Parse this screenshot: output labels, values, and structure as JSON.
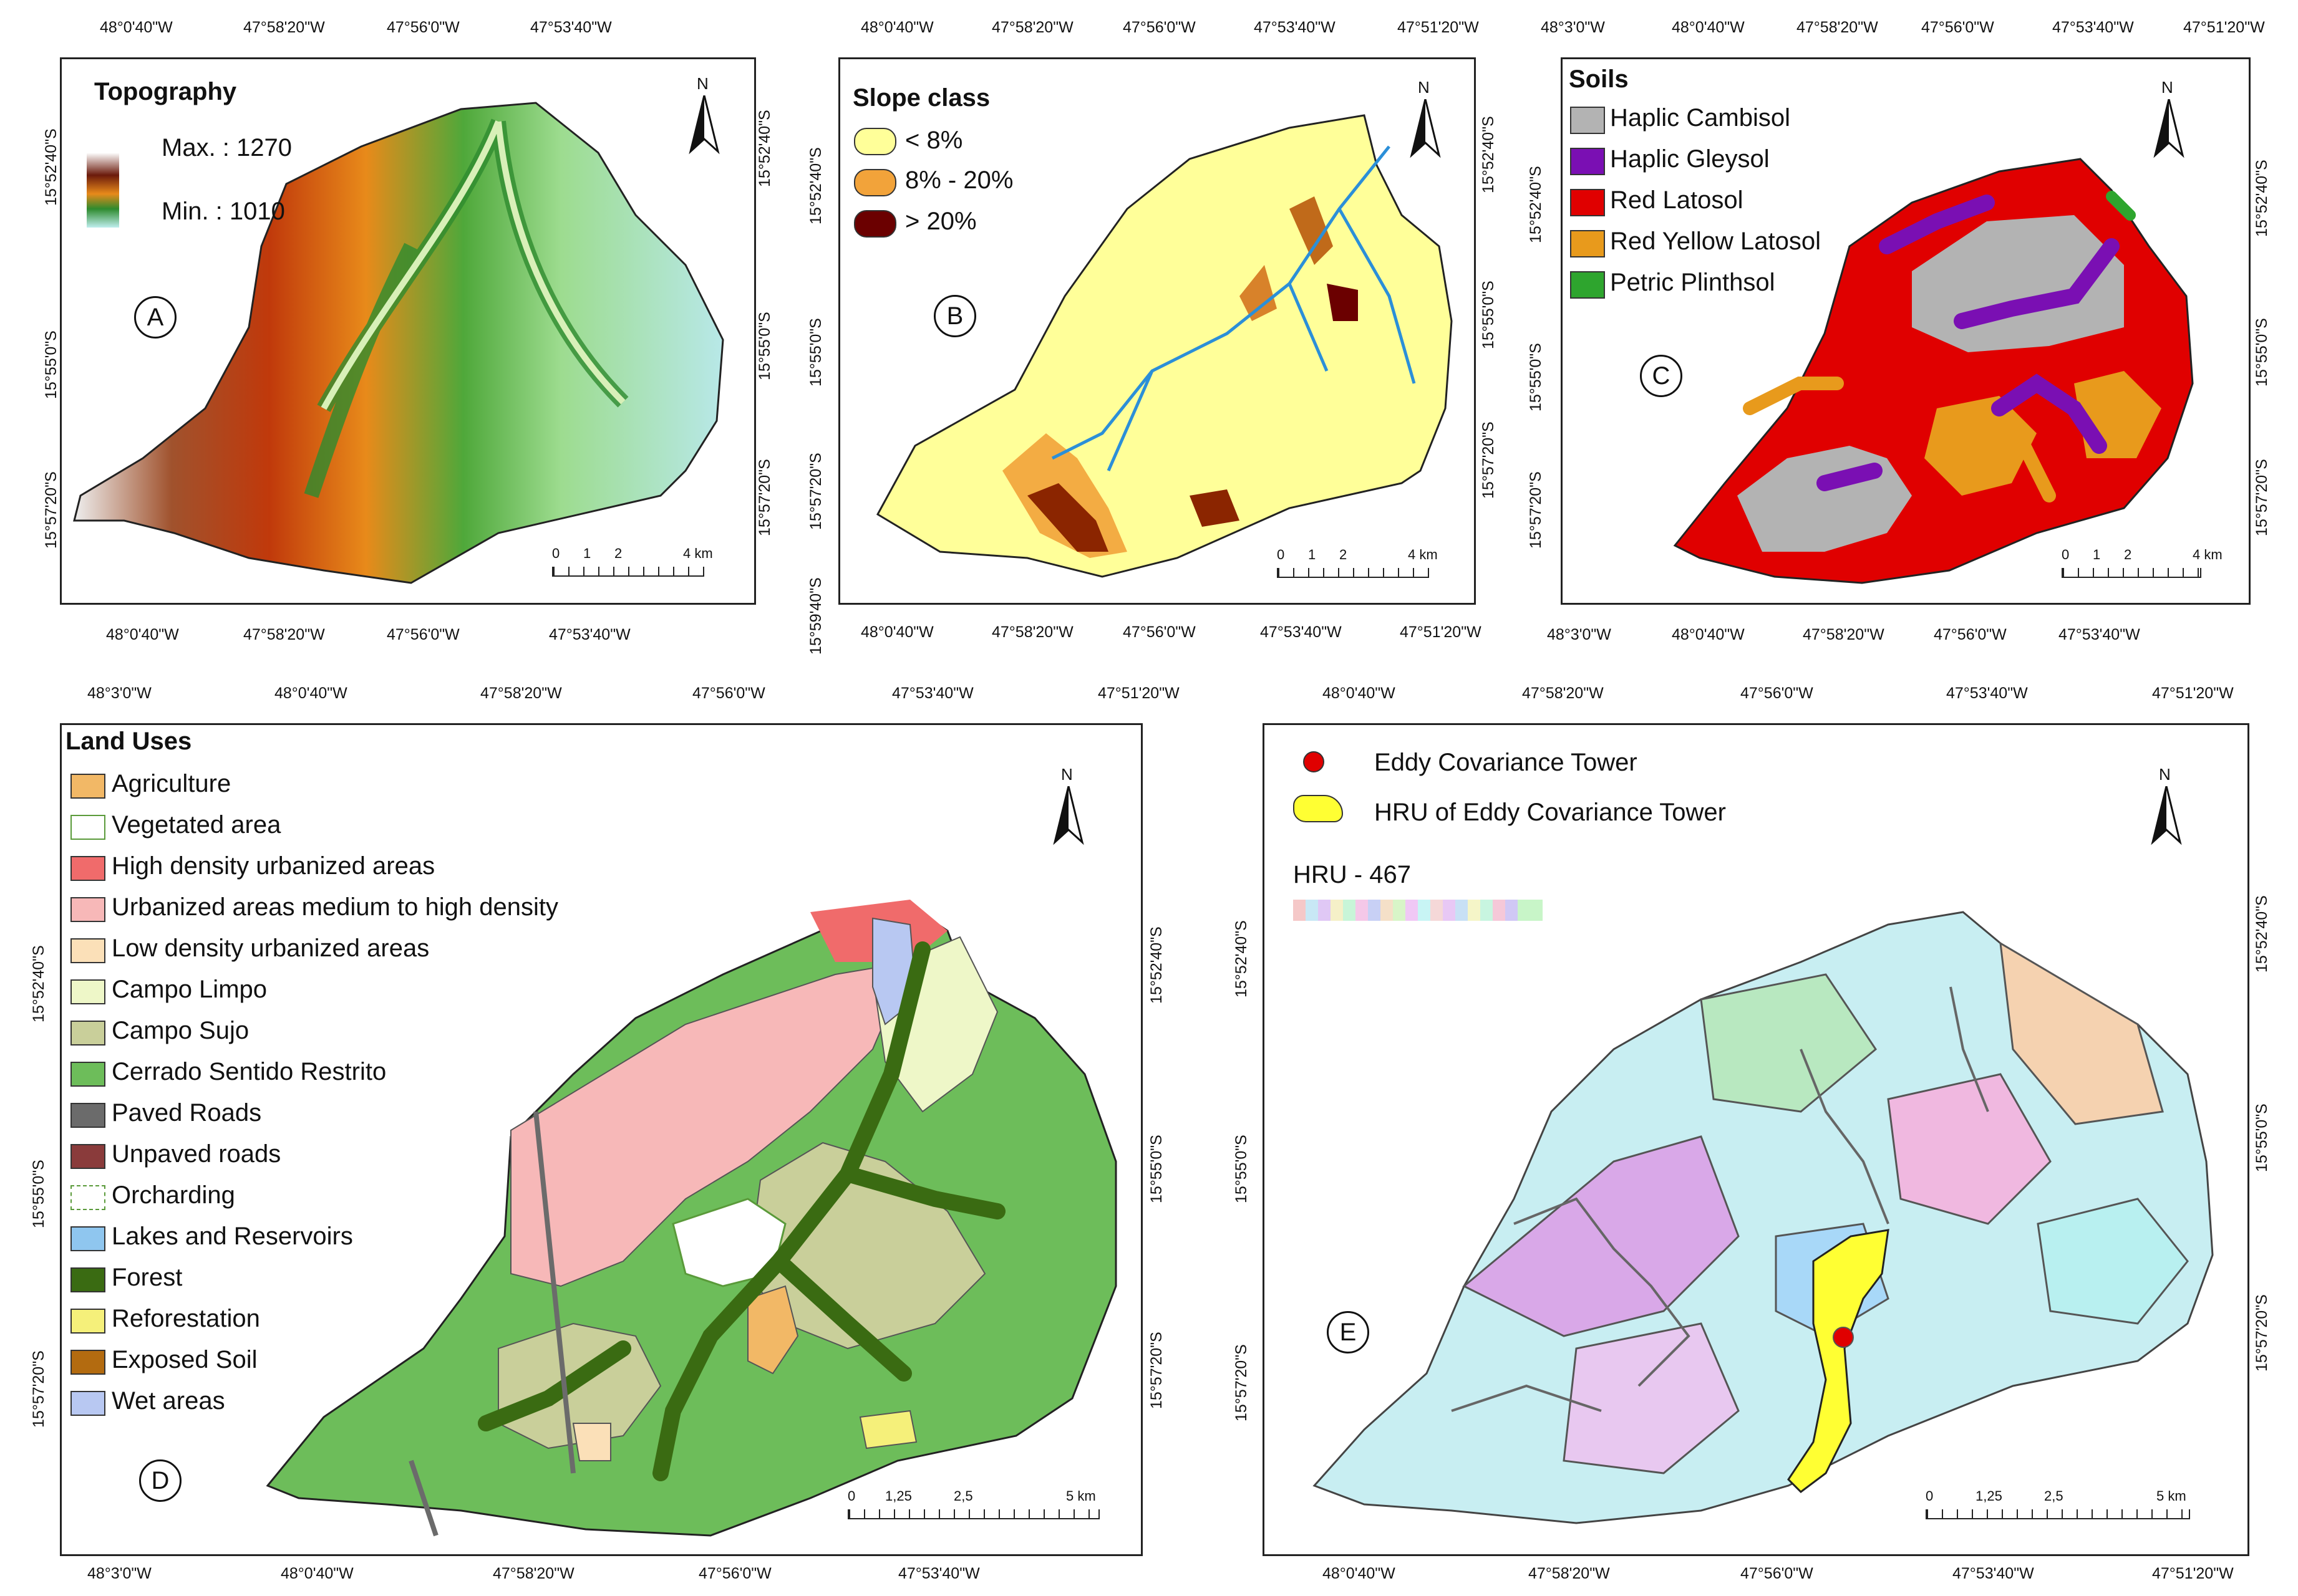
{
  "panels": {
    "A": {
      "title": "Topography",
      "max_label": "Max. : 1270",
      "min_label": "Min. : 1010",
      "letter": "A",
      "top_ticks": [
        "48°0'40\"W",
        "47°58'20\"W",
        "47°56'0\"W",
        "47°53'40\"W"
      ],
      "bottom_ticks": [
        "48°0'40\"W",
        "47°58'20\"W",
        "47°56'0\"W",
        "47°53'40\"W"
      ],
      "left_ticks": [
        "15°52'40\"S",
        "15°55'0\"S",
        "15°57'20\"S"
      ],
      "right_ticks": [
        "15°52'40\"S",
        "15°55'0\"S",
        "15°57'20\"S"
      ],
      "scale_labels": [
        "0",
        "1",
        "2",
        "4 km"
      ],
      "north": "N"
    },
    "B": {
      "title": "Slope class",
      "legend": [
        {
          "label": "< 8%",
          "color": "#ffff99"
        },
        {
          "label": "8% - 20%",
          "color": "#f2a33a"
        },
        {
          "label": "> 20%",
          "color": "#6b0000"
        }
      ],
      "letter": "B",
      "top_ticks": [
        "48°0'40\"W",
        "47°58'20\"W",
        "47°56'0\"W",
        "47°53'40\"W",
        "47°51'20\"W"
      ],
      "bottom_ticks": [
        "48°0'40\"W",
        "47°58'20\"W",
        "47°56'0\"W",
        "47°53'40\"W",
        "47°51'20\"W"
      ],
      "left_ticks": [
        "15°52'40\"S",
        "15°55'0\"S",
        "15°57'20\"S",
        "15°59'40\"S"
      ],
      "right_ticks": [
        "15°52'40\"S",
        "15°55'0\"S",
        "15°57'20\"S"
      ],
      "scale_labels": [
        "0",
        "1",
        "2",
        "4 km"
      ],
      "north": "N"
    },
    "C": {
      "title": "Soils",
      "legend": [
        {
          "label": "Haplic Cambisol",
          "color": "#b3b3b3"
        },
        {
          "label": "Haplic Gleysol",
          "color": "#7a0fb3"
        },
        {
          "label": "Red Latosol",
          "color": "#e00000"
        },
        {
          "label": "Red Yellow Latosol",
          "color": "#e89a1c"
        },
        {
          "label": "Petric Plinthsol",
          "color": "#2ea52e"
        }
      ],
      "letter": "C",
      "top_ticks": [
        "48°3'0\"W",
        "48°0'40\"W",
        "47°58'20\"W",
        "47°56'0\"W",
        "47°53'40\"W",
        "47°51'20\"W"
      ],
      "bottom_ticks": [
        "48°3'0\"W",
        "48°0'40\"W",
        "47°58'20\"W",
        "47°56'0\"W",
        "47°53'40\"W"
      ],
      "left_ticks": [
        "15°52'40\"S",
        "15°55'0\"S",
        "15°57'20\"S"
      ],
      "right_ticks": [
        "15°52'40\"S",
        "15°55'0\"S",
        "15°57'20\"S"
      ],
      "scale_labels": [
        "0",
        "1",
        "2",
        "4 km"
      ],
      "north": "N"
    },
    "D": {
      "title": "Land Uses",
      "legend": [
        {
          "label": "Agriculture",
          "color": "#f2b866"
        },
        {
          "label": "Vegetated area",
          "color": "#ffffff"
        },
        {
          "label": "High density urbanized areas",
          "color": "#f06b6b"
        },
        {
          "label": "Urbanized areas medium to high density",
          "color": "#f7b8b8"
        },
        {
          "label": "Low density urbanized areas",
          "color": "#fbe0b8"
        },
        {
          "label": "Campo Limpo",
          "color": "#eef7c8"
        },
        {
          "label": "Campo Sujo",
          "color": "#c9cf9a"
        },
        {
          "label": "Cerrado Sentido Restrito",
          "color": "#6dbd5a"
        },
        {
          "label": "Paved Roads",
          "color": "#6b6b6b"
        },
        {
          "label": "Unpaved roads",
          "color": "#8a3b3b"
        },
        {
          "label": "Orcharding",
          "color": "#ffffff"
        },
        {
          "label": "Lakes and Reservoirs",
          "color": "#8fc6ef"
        },
        {
          "label": "Forest",
          "color": "#3a6b12"
        },
        {
          "label": "Reforestation",
          "color": "#f5f07a"
        },
        {
          "label": "Exposed Soil",
          "color": "#b36b10"
        },
        {
          "label": "Wet areas",
          "color": "#b8c8f2"
        }
      ],
      "letter": "D",
      "top_ticks": [
        "48°3'0\"W",
        "48°0'40\"W",
        "47°58'20\"W",
        "47°56'0\"W",
        "47°53'40\"W",
        "47°51'20\"W"
      ],
      "bottom_ticks": [
        "48°3'0\"W",
        "48°0'40\"W",
        "47°58'20\"W",
        "47°56'0\"W",
        "47°53'40\"W"
      ],
      "left_ticks": [
        "15°52'40\"S",
        "15°55'0\"S",
        "15°57'20\"S"
      ],
      "right_ticks": [
        "15°52'40\"S",
        "15°55'0\"S",
        "15°57'20\"S"
      ],
      "scale_labels": [
        "0",
        "1,25",
        "2,5",
        "5 km"
      ],
      "north": "N"
    },
    "E": {
      "legend": [
        {
          "label": "Eddy Covariance Tower",
          "color": "#e00000"
        },
        {
          "label": "HRU of Eddy Covariance Tower",
          "color": "#ffff33"
        }
      ],
      "hru_label": "HRU - 467",
      "letter": "E",
      "top_ticks": [
        "48°0'40\"W",
        "47°58'20\"W",
        "47°56'0\"W",
        "47°53'40\"W",
        "47°51'20\"W"
      ],
      "bottom_ticks": [
        "48°0'40\"W",
        "47°58'20\"W",
        "47°56'0\"W",
        "47°53'40\"W",
        "47°51'20\"W"
      ],
      "left_ticks": [
        "15°52'40\"S",
        "15°55'0\"S",
        "15°57'20\"S"
      ],
      "right_ticks": [
        "15°52'40\"S",
        "15°55'0\"S",
        "15°57'20\"S"
      ],
      "scale_labels": [
        "0",
        "1,25",
        "2,5",
        "5 km"
      ],
      "north": "N"
    }
  }
}
